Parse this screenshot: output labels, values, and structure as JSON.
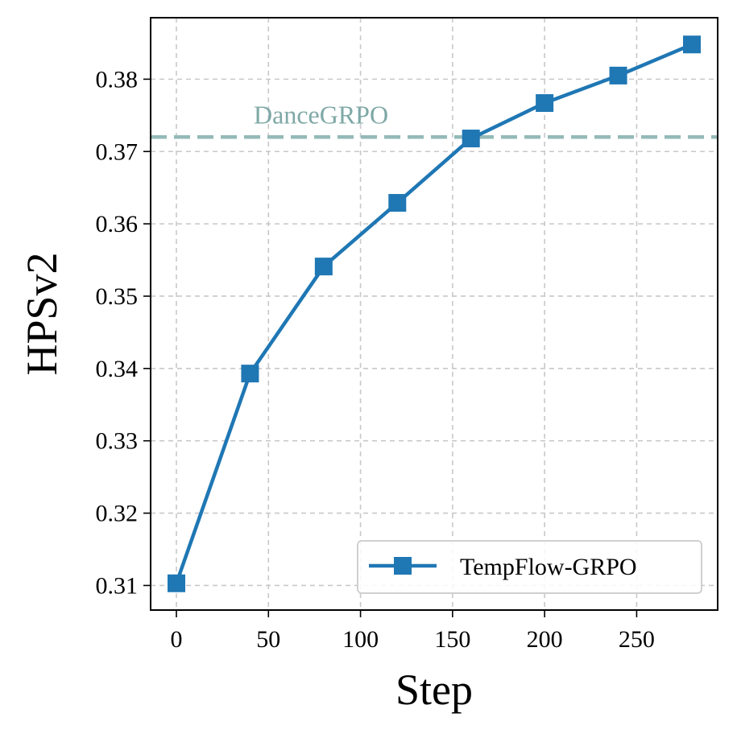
{
  "chart_data": {
    "type": "line",
    "title": "",
    "xlabel": "Step",
    "ylabel": "HPSv2",
    "x": [
      0,
      40,
      80,
      120,
      160,
      200,
      240,
      280
    ],
    "series": [
      {
        "name": "TempFlow-GRPO",
        "color": "#1f77b4",
        "marker": "square",
        "values": [
          0.3103,
          0.3393,
          0.3541,
          0.3629,
          0.3718,
          0.3767,
          0.3805,
          0.3848
        ]
      }
    ],
    "reference_line": {
      "label": "DanceGRPO",
      "value": 0.372,
      "color": "#93bab8"
    },
    "xlim": [
      -14,
      294
    ],
    "ylim": [
      0.3066,
      0.3885
    ],
    "xticks": [
      0,
      50,
      100,
      150,
      200,
      250
    ],
    "xtick_labels": [
      "0",
      "50",
      "100",
      "150",
      "200",
      "250"
    ],
    "yticks": [
      0.31,
      0.32,
      0.33,
      0.34,
      0.35,
      0.36,
      0.37,
      0.38
    ],
    "ytick_labels": [
      "0.31",
      "0.32",
      "0.33",
      "0.34",
      "0.35",
      "0.36",
      "0.37",
      "0.38"
    ],
    "grid": true,
    "legend_position": "lower-right"
  }
}
